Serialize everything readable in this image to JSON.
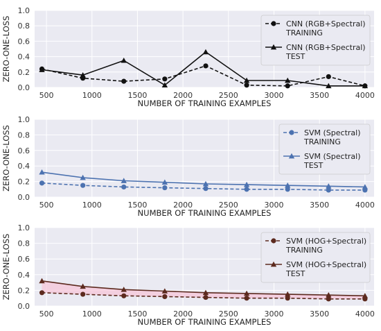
{
  "chart_data": [
    {
      "type": "line",
      "xlabel": "NUMBER OF TRAINING EXAMPLES",
      "ylabel": "ZERO-ONE-LOSS",
      "xlim": [
        370,
        4100
      ],
      "ylim": [
        0,
        1.0
      ],
      "xticks": [
        500,
        1000,
        1500,
        2000,
        2500,
        3000,
        3500,
        4000
      ],
      "yticks": [
        0,
        0.2,
        0.4,
        0.6,
        0.8,
        1.0
      ],
      "ytick_labels": [
        "0.0",
        "0.2",
        "0.4",
        "0.6",
        "0.8",
        "1.0"
      ],
      "grid": true,
      "legend_position": "top-right",
      "x": [
        450,
        900,
        1350,
        1800,
        2250,
        2700,
        3150,
        3600,
        4000
      ],
      "series": [
        {
          "name": "CNN (RGB+Spectral)\nTRAINING",
          "style": "dashed",
          "marker": "circle",
          "color": "#111111",
          "values": [
            0.24,
            0.12,
            0.08,
            0.11,
            0.28,
            0.03,
            0.02,
            0.14,
            0.02
          ]
        },
        {
          "name": "CNN (RGB+Spectral)\nTEST",
          "style": "solid",
          "marker": "triangle",
          "color": "#111111",
          "values": [
            0.23,
            0.16,
            0.35,
            0.03,
            0.46,
            0.09,
            0.09,
            0.02,
            0.02
          ]
        }
      ]
    },
    {
      "type": "line",
      "xlabel": "NUMBER OF TRAINING EXAMPLES",
      "ylabel": "ZERO-ONE-LOSS",
      "xlim": [
        370,
        4100
      ],
      "ylim": [
        0,
        1.0
      ],
      "xticks": [
        500,
        1000,
        1500,
        2000,
        2500,
        3000,
        3500,
        4000
      ],
      "yticks": [
        0,
        0.2,
        0.4,
        0.6,
        0.8,
        1.0
      ],
      "ytick_labels": [
        "0.0",
        "0.2",
        "0.4",
        "0.6",
        "0.8",
        "1.0"
      ],
      "grid": true,
      "legend_position": "top-right",
      "x": [
        450,
        900,
        1350,
        1800,
        2250,
        2700,
        3150,
        3600,
        4000
      ],
      "series": [
        {
          "name": "SVM (Spectral)\nTRAINING",
          "style": "dashed",
          "marker": "circle",
          "color": "#4c72b0",
          "values": [
            0.18,
            0.15,
            0.13,
            0.12,
            0.11,
            0.1,
            0.1,
            0.09,
            0.09
          ]
        },
        {
          "name": "SVM (Spectral)\nTEST",
          "style": "solid",
          "marker": "triangle",
          "color": "#4c72b0",
          "values": [
            0.32,
            0.25,
            0.21,
            0.19,
            0.17,
            0.16,
            0.15,
            0.14,
            0.13
          ]
        }
      ]
    },
    {
      "type": "line",
      "xlabel": "NUMBER OF TRAINING EXAMPLES",
      "ylabel": "ZERO-ONE-LOSS",
      "xlim": [
        370,
        4100
      ],
      "ylim": [
        0,
        1.0
      ],
      "xticks": [
        500,
        1000,
        1500,
        2000,
        2500,
        3000,
        3500,
        4000
      ],
      "yticks": [
        0,
        0.2,
        0.4,
        0.6,
        0.8,
        1.0
      ],
      "ytick_labels": [
        "0.0",
        "0.2",
        "0.4",
        "0.6",
        "0.8",
        "1.0"
      ],
      "grid": true,
      "legend_position": "top-right",
      "x": [
        450,
        900,
        1350,
        1800,
        2250,
        2700,
        3150,
        3600,
        4000
      ],
      "series": [
        {
          "name": "SVM (HOG+Spectral)\nTRAINING",
          "style": "dashed",
          "marker": "circle",
          "color": "#5c2a1e",
          "values": [
            0.17,
            0.15,
            0.13,
            0.12,
            0.11,
            0.1,
            0.1,
            0.09,
            0.09
          ]
        },
        {
          "name": "SVM (HOG+Spectral)\nTEST",
          "style": "solid",
          "marker": "triangle",
          "color": "#5c2a1e",
          "values": [
            0.32,
            0.25,
            0.21,
            0.19,
            0.17,
            0.16,
            0.15,
            0.14,
            0.13
          ]
        }
      ],
      "band_color": "#f6c6d8"
    }
  ]
}
